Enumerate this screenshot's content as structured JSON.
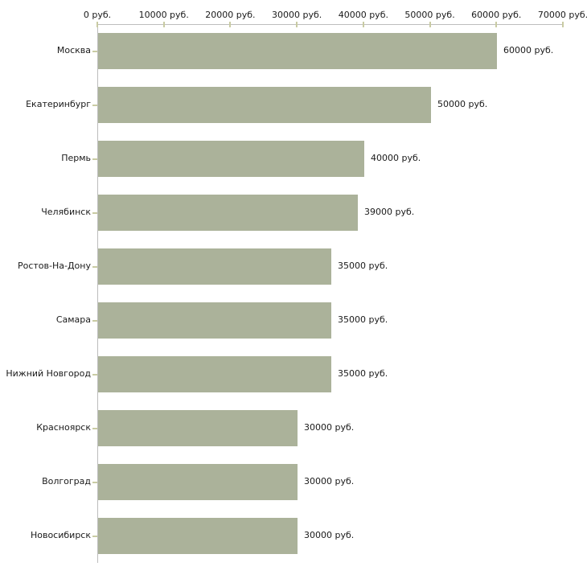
{
  "chart_data": {
    "type": "bar",
    "orientation": "horizontal",
    "title": "",
    "xlabel": "",
    "ylabel": "",
    "unit": "руб.",
    "categories": [
      "Москва",
      "Екатеринбург",
      "Пермь",
      "Челябинск",
      "Ростов-На-Дону",
      "Самара",
      "Нижний Новгород",
      "Красноярск",
      "Волгоград",
      "Новосибирск"
    ],
    "values": [
      60000,
      50000,
      40000,
      39000,
      35000,
      35000,
      35000,
      30000,
      30000,
      30000
    ],
    "value_labels": [
      "60000 руб.",
      "50000 руб.",
      "40000 руб.",
      "39000 руб.",
      "35000 руб.",
      "35000 руб.",
      "35000 руб.",
      "30000 руб.",
      "30000 руб.",
      "30000 руб."
    ],
    "x_tick_labels": [
      "0 руб.",
      "10000 руб.",
      "20000 руб.",
      "30000 руб.",
      "40000 руб.",
      "50000 руб.",
      "60000 руб.",
      "70000 руб."
    ],
    "x_tick_values": [
      0,
      10000,
      20000,
      30000,
      40000,
      50000,
      60000,
      70000
    ],
    "xlim": [
      0,
      70000
    ],
    "grid": false,
    "legend": null,
    "colors": {
      "bar": "#abb29a",
      "axis": "#bdbdbd",
      "tick": "#c9cba3",
      "text": "#1a1a1a",
      "background": "#ffffff"
    }
  }
}
